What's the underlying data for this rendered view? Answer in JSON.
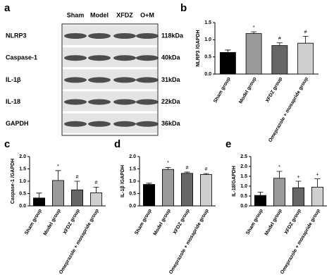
{
  "blot": {
    "panel_label": "a",
    "lanes": [
      "Sham",
      "Model",
      "XFDZ",
      "O+M"
    ],
    "rows": [
      {
        "protein": "NLRP3",
        "size": "118kDa"
      },
      {
        "protein": "Caspase-1",
        "size": "40kDa"
      },
      {
        "protein": "IL-1β",
        "size": "31kDa"
      },
      {
        "protein": "IL-18",
        "size": "22kDa"
      },
      {
        "protein": "GAPDH",
        "size": "36kDa"
      }
    ]
  },
  "chart_data": [
    {
      "type": "bar",
      "panel_label": "b",
      "y_label": "NLRP3 /GAPDH",
      "categories": [
        "Sham group",
        "Model group",
        "XFDZ group",
        "Omeprazole + mosapride group"
      ],
      "values": [
        0.63,
        1.18,
        0.83,
        0.9
      ],
      "errors": [
        0.07,
        0.05,
        0.08,
        0.2
      ],
      "markers": [
        null,
        "*",
        "#",
        "#"
      ],
      "colors": [
        "#000000",
        "#9a9a9a",
        "#666666",
        "#cfcfcf"
      ],
      "ylim": [
        0,
        1.5
      ],
      "yticks": [
        {
          "value": 0,
          "label": "0.0"
        },
        {
          "value": 0.5,
          "label": "0.5"
        },
        {
          "value": 1,
          "label": "1.0"
        },
        {
          "value": 1.5,
          "label": "1.5"
        }
      ]
    },
    {
      "type": "bar",
      "panel_label": "c",
      "y_label": "Caspase-1 /GAPDH",
      "categories": [
        "Sham group",
        "Model group",
        "XFDZ group",
        "Omeprazole + mosapride group"
      ],
      "values": [
        0.32,
        1.03,
        0.65,
        0.53
      ],
      "errors": [
        0.2,
        0.4,
        0.35,
        0.23
      ],
      "markers": [
        null,
        "*",
        "#",
        "#"
      ],
      "colors": [
        "#000000",
        "#9a9a9a",
        "#666666",
        "#cfcfcf"
      ],
      "ylim": [
        0,
        2
      ],
      "yticks": [
        {
          "value": 0,
          "label": "0.0"
        },
        {
          "value": 0.5,
          "label": "0.5"
        },
        {
          "value": 1,
          "label": "1.0"
        },
        {
          "value": 1.5,
          "label": "1.5"
        },
        {
          "value": 2,
          "label": "2.0"
        }
      ]
    },
    {
      "type": "bar",
      "panel_label": "d",
      "y_label": "IL-1β /GAPDH",
      "categories": [
        "Sham group",
        "Model group",
        "XFDZ group",
        "Omeprazole + mosapride group"
      ],
      "values": [
        0.87,
        1.48,
        1.32,
        1.27
      ],
      "errors": [
        0.05,
        0.08,
        0.05,
        0.04
      ],
      "markers": [
        null,
        "*",
        "#",
        "#"
      ],
      "colors": [
        "#000000",
        "#9a9a9a",
        "#666666",
        "#cfcfcf"
      ],
      "ylim": [
        0,
        2
      ],
      "yticks": [
        {
          "value": 0,
          "label": "0.0"
        },
        {
          "value": 0.5,
          "label": "0.5"
        },
        {
          "value": 1,
          "label": "1.0"
        },
        {
          "value": 1.5,
          "label": "1.5"
        },
        {
          "value": 2,
          "label": "2.0"
        }
      ]
    },
    {
      "type": "bar",
      "panel_label": "e",
      "y_label": "IL-18/GAPDH",
      "categories": [
        "Sham group",
        "Model group",
        "XFDZ group",
        "Omeprazole + mosapride group"
      ],
      "values": [
        0.53,
        1.4,
        0.92,
        0.95
      ],
      "errors": [
        0.17,
        0.35,
        0.33,
        0.42
      ],
      "markers": [
        null,
        "*",
        "+",
        "+"
      ],
      "colors": [
        "#000000",
        "#9a9a9a",
        "#666666",
        "#cfcfcf"
      ],
      "ylim": [
        0,
        2.5
      ],
      "yticks": [
        {
          "value": 0,
          "label": "0.0"
        },
        {
          "value": 0.5,
          "label": "0.5"
        },
        {
          "value": 1,
          "label": "1.0"
        },
        {
          "value": 1.5,
          "label": "1.5"
        },
        {
          "value": 2,
          "label": "2.0"
        },
        {
          "value": 2.5,
          "label": "2.5"
        }
      ]
    }
  ]
}
